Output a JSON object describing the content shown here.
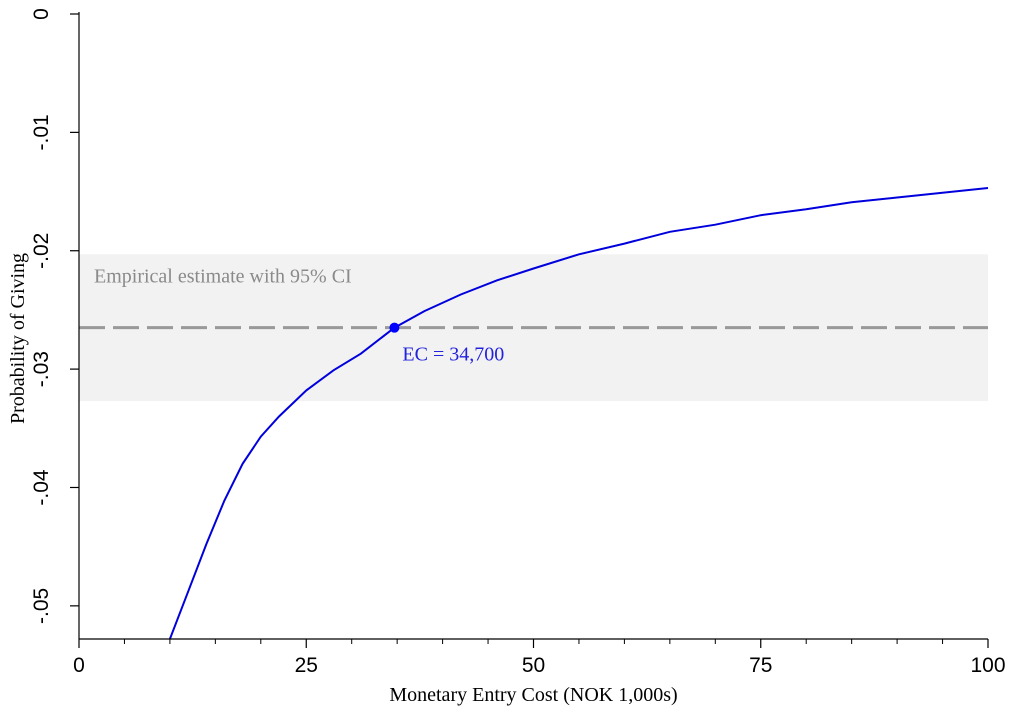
{
  "chart_data": {
    "type": "line",
    "title": "",
    "xlabel": "Monetary Entry Cost (NOK 1,000s)",
    "ylabel": "Probability of Giving",
    "xlim": [
      0,
      100
    ],
    "ylim": [
      -0.0528,
      0
    ],
    "x_ticks": [
      0,
      25,
      50,
      75,
      100
    ],
    "x_tick_labels": [
      "0",
      "25",
      "50",
      "75",
      "100"
    ],
    "x_minor_ticks": [
      5,
      10,
      15,
      20,
      30,
      35,
      40,
      45,
      55,
      60,
      65,
      70,
      80,
      85,
      90,
      95
    ],
    "y_ticks": [
      0,
      -0.01,
      -0.02,
      -0.03,
      -0.04,
      -0.05
    ],
    "y_tick_labels": [
      "0",
      "-.01",
      "-.02",
      "-.03",
      "-.04",
      "-.05"
    ],
    "grid": false,
    "series": [
      {
        "color": "#0000dd",
        "x": [
          10,
          12,
          14,
          16,
          18,
          20,
          22,
          25,
          28,
          31,
          34.7,
          38,
          42,
          46,
          50,
          55,
          60,
          65,
          70,
          75,
          80,
          85,
          90,
          95,
          100
        ],
        "y": [
          -0.0528,
          -0.0488,
          -0.0448,
          -0.0411,
          -0.038,
          -0.0357,
          -0.034,
          -0.0318,
          -0.0301,
          -0.0287,
          -0.0265,
          -0.0251,
          -0.0237,
          -0.0225,
          -0.0215,
          -0.0203,
          -0.0194,
          -0.0184,
          -0.0178,
          -0.017,
          -0.0165,
          -0.0159,
          -0.0155,
          -0.0151,
          -0.0147
        ]
      }
    ],
    "reference_line": {
      "y": -0.0265,
      "color": "#999999",
      "style": "dashed"
    },
    "ci_band": {
      "y_low": -0.0327,
      "y_high": -0.0203,
      "color": "#f2f2f2",
      "label": "Empirical estimate with 95% CI"
    },
    "highlight_point": {
      "x": 34.7,
      "y": -0.0265,
      "label": "EC = 34,700",
      "color": "#0000ff"
    }
  }
}
